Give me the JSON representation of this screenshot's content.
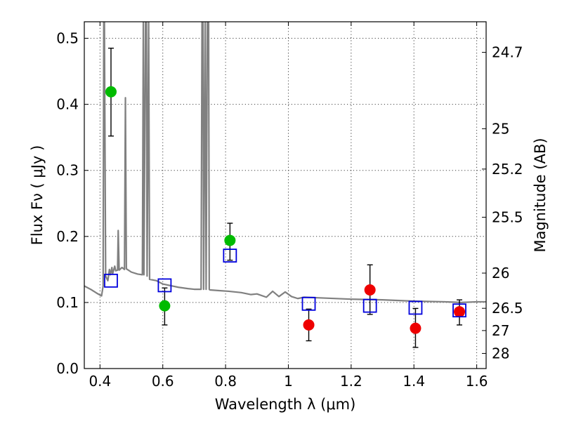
{
  "colors": {
    "background": "#ffffff",
    "axis": "#000000",
    "template": "#808080",
    "photometry_green": "#00bb00",
    "photometry_red": "#ee0000",
    "model_box": "#0000dd",
    "errorbar": "#000000"
  },
  "chart_data": {
    "type": "scatter",
    "title": "",
    "xlabel": "Wavelength  λ (μm)",
    "ylabel": "Flux  Fν  ( μJy )",
    "y2label": "Magnitude (AB)",
    "xlim": [
      0.35,
      1.63
    ],
    "ylim": [
      0.0,
      0.525
    ],
    "x_ticks": [
      0.4,
      0.6,
      0.8,
      1.0,
      1.2,
      1.4,
      1.6
    ],
    "x_tick_labels": [
      "0.4",
      "0.6",
      "0.8",
      "1",
      "1.2",
      "1.4",
      "1.6"
    ],
    "y_ticks": [
      0.0,
      0.1,
      0.2,
      0.3,
      0.4,
      0.5
    ],
    "y_tick_labels": [
      "0.0",
      "0.1",
      "0.2",
      "0.3",
      "0.4",
      "0.5"
    ],
    "right_axis_ticks": [
      {
        "flux": 0.4787,
        "label": "24.7"
      },
      {
        "flux": 0.3631,
        "label": "25"
      },
      {
        "flux": 0.302,
        "label": "25.2"
      },
      {
        "flux": 0.2291,
        "label": "25.5"
      },
      {
        "flux": 0.1445,
        "label": "26"
      },
      {
        "flux": 0.0912,
        "label": "26.5"
      },
      {
        "flux": 0.0575,
        "label": "27"
      },
      {
        "flux": 0.0229,
        "label": "28"
      }
    ],
    "grid": true,
    "legend": "none",
    "series": [
      {
        "type": "scatter",
        "marker": "circle",
        "color": "#00bb00",
        "points": [
          {
            "x": 0.435,
            "y": 0.419,
            "yerr_low": 0.352,
            "yerr_high": 0.485
          },
          {
            "x": 0.606,
            "y": 0.095,
            "yerr_low": 0.066,
            "yerr_high": 0.122
          },
          {
            "x": 0.814,
            "y": 0.194,
            "yerr_low": 0.164,
            "yerr_high": 0.22
          }
        ]
      },
      {
        "type": "scatter",
        "marker": "circle",
        "color": "#ee0000",
        "points": [
          {
            "x": 1.065,
            "y": 0.066,
            "yerr_low": 0.042,
            "yerr_high": 0.09
          },
          {
            "x": 1.26,
            "y": 0.119,
            "yerr_low": 0.082,
            "yerr_high": 0.157
          },
          {
            "x": 1.405,
            "y": 0.061,
            "yerr_low": 0.032,
            "yerr_high": 0.091
          },
          {
            "x": 1.545,
            "y": 0.086,
            "yerr_low": 0.066,
            "yerr_high": 0.104
          }
        ]
      },
      {
        "type": "scatter",
        "marker": "open-square",
        "color": "#0000dd",
        "points": [
          {
            "x": 0.435,
            "y": 0.133
          },
          {
            "x": 0.606,
            "y": 0.126
          },
          {
            "x": 0.814,
            "y": 0.171
          },
          {
            "x": 1.065,
            "y": 0.098
          },
          {
            "x": 1.26,
            "y": 0.095
          },
          {
            "x": 1.405,
            "y": 0.092
          },
          {
            "x": 1.545,
            "y": 0.088
          }
        ]
      },
      {
        "type": "line",
        "color": "#808080",
        "points": [
          {
            "x": 0.35,
            "y": 0.125
          },
          {
            "x": 0.37,
            "y": 0.12
          },
          {
            "x": 0.39,
            "y": 0.114
          },
          {
            "x": 0.405,
            "y": 0.11
          },
          {
            "x": 0.41,
            "y": 0.125
          },
          {
            "x": 0.412,
            "y": 0.525
          },
          {
            "x": 0.414,
            "y": 0.525
          },
          {
            "x": 0.418,
            "y": 0.14
          },
          {
            "x": 0.425,
            "y": 0.133
          },
          {
            "x": 0.43,
            "y": 0.15
          },
          {
            "x": 0.433,
            "y": 0.142
          },
          {
            "x": 0.438,
            "y": 0.153
          },
          {
            "x": 0.44,
            "y": 0.143
          },
          {
            "x": 0.447,
            "y": 0.155
          },
          {
            "x": 0.45,
            "y": 0.148
          },
          {
            "x": 0.456,
            "y": 0.149
          },
          {
            "x": 0.458,
            "y": 0.209
          },
          {
            "x": 0.461,
            "y": 0.149
          },
          {
            "x": 0.47,
            "y": 0.153
          },
          {
            "x": 0.478,
            "y": 0.15
          },
          {
            "x": 0.481,
            "y": 0.41
          },
          {
            "x": 0.484,
            "y": 0.151
          },
          {
            "x": 0.5,
            "y": 0.146
          },
          {
            "x": 0.52,
            "y": 0.143
          },
          {
            "x": 0.535,
            "y": 0.142
          },
          {
            "x": 0.538,
            "y": 0.525
          },
          {
            "x": 0.54,
            "y": 0.142
          },
          {
            "x": 0.545,
            "y": 0.525
          },
          {
            "x": 0.548,
            "y": 0.525
          },
          {
            "x": 0.55,
            "y": 0.14
          },
          {
            "x": 0.555,
            "y": 0.525
          },
          {
            "x": 0.558,
            "y": 0.135
          },
          {
            "x": 0.58,
            "y": 0.133
          },
          {
            "x": 0.6,
            "y": 0.128
          },
          {
            "x": 0.62,
            "y": 0.126
          },
          {
            "x": 0.65,
            "y": 0.123
          },
          {
            "x": 0.68,
            "y": 0.121
          },
          {
            "x": 0.7,
            "y": 0.12
          },
          {
            "x": 0.722,
            "y": 0.12
          },
          {
            "x": 0.725,
            "y": 0.525
          },
          {
            "x": 0.728,
            "y": 0.525
          },
          {
            "x": 0.73,
            "y": 0.12
          },
          {
            "x": 0.735,
            "y": 0.525
          },
          {
            "x": 0.738,
            "y": 0.12
          },
          {
            "x": 0.742,
            "y": 0.525
          },
          {
            "x": 0.746,
            "y": 0.525
          },
          {
            "x": 0.748,
            "y": 0.12
          },
          {
            "x": 0.75,
            "y": 0.119
          },
          {
            "x": 0.78,
            "y": 0.118
          },
          {
            "x": 0.81,
            "y": 0.117
          },
          {
            "x": 0.85,
            "y": 0.115
          },
          {
            "x": 0.88,
            "y": 0.112
          },
          {
            "x": 0.9,
            "y": 0.113
          },
          {
            "x": 0.93,
            "y": 0.108
          },
          {
            "x": 0.95,
            "y": 0.117
          },
          {
            "x": 0.97,
            "y": 0.109
          },
          {
            "x": 0.99,
            "y": 0.116
          },
          {
            "x": 1.01,
            "y": 0.109
          },
          {
            "x": 1.03,
            "y": 0.106
          },
          {
            "x": 1.05,
            "y": 0.108
          },
          {
            "x": 1.1,
            "y": 0.107
          },
          {
            "x": 1.2,
            "y": 0.105
          },
          {
            "x": 1.3,
            "y": 0.104
          },
          {
            "x": 1.4,
            "y": 0.102
          },
          {
            "x": 1.5,
            "y": 0.101
          },
          {
            "x": 1.55,
            "y": 0.1
          },
          {
            "x": 1.6,
            "y": 0.101
          },
          {
            "x": 1.63,
            "y": 0.101
          }
        ]
      }
    ]
  }
}
